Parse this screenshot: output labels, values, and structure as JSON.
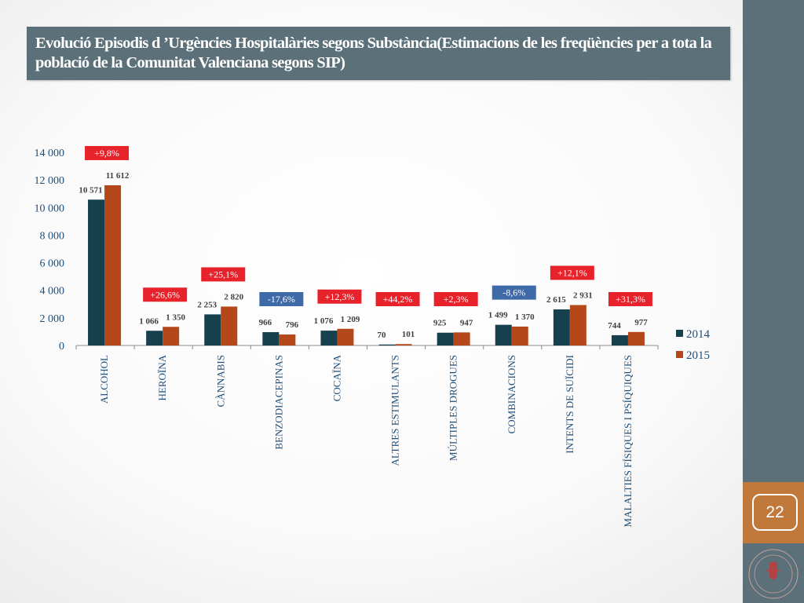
{
  "title": "Evolució Episodis d ’Urgències Hospitalàries segons Substància(Estimacions de les freqüències per a tota la població de la Comunitat Valenciana segons SIP)",
  "page_number": "22",
  "colors": {
    "sidebar": "#5b7078",
    "page_tab": "#c0793a",
    "series_2014": "#16404d",
    "series_2015": "#b5481a",
    "badge_positive": "#e8222b",
    "badge_negative": "#3f6aa8",
    "axis_text": "#1f4e79"
  },
  "chart_data": {
    "type": "bar",
    "categories": [
      "ALCOHOL",
      "HEROÏNA",
      "CÀNNABIS",
      "BENZODIACEPINAS",
      "COCAÏNA",
      "ALTRES ESTIMULANTS",
      "MÚLTIPLES DROGUES",
      "COMBINACIONS",
      "INTENTS DE SUÏCIDI",
      "MALALTIES FÍSIQUES I PSÍQUIQUES"
    ],
    "series": [
      {
        "name": "2014",
        "values": [
          10571,
          1066,
          2253,
          966,
          1076,
          70,
          925,
          1499,
          2615,
          744
        ],
        "labels": [
          "10 571",
          "1 066",
          "2 253",
          "966",
          "1 076",
          "70",
          "925",
          "1 499",
          "2 615",
          "744"
        ]
      },
      {
        "name": "2015",
        "values": [
          11612,
          1350,
          2820,
          796,
          1209,
          101,
          947,
          1370,
          2931,
          977
        ],
        "labels": [
          "11 612",
          "1 350",
          "2 820",
          "796",
          "1 209",
          "101",
          "947",
          "1 370",
          "2 931",
          "977"
        ]
      }
    ],
    "changes": [
      "+9,8%",
      "+26,6%",
      "+25,1%",
      "-17,6%",
      "+12,3%",
      "+44,2%",
      "+2,3%",
      "-8,6%",
      "+12,1%",
      "+31,3%"
    ],
    "change_sign": [
      "positive",
      "positive",
      "positive",
      "negative",
      "positive",
      "positive",
      "positive",
      "negative",
      "positive",
      "positive"
    ],
    "yticks": [
      "0",
      "2 000",
      "4 000",
      "6 000",
      "8 000",
      "10 000",
      "12 000",
      "14 000"
    ],
    "ylim": [
      0,
      14000
    ],
    "legend_position": "right",
    "xlabel": "",
    "ylabel": ""
  }
}
